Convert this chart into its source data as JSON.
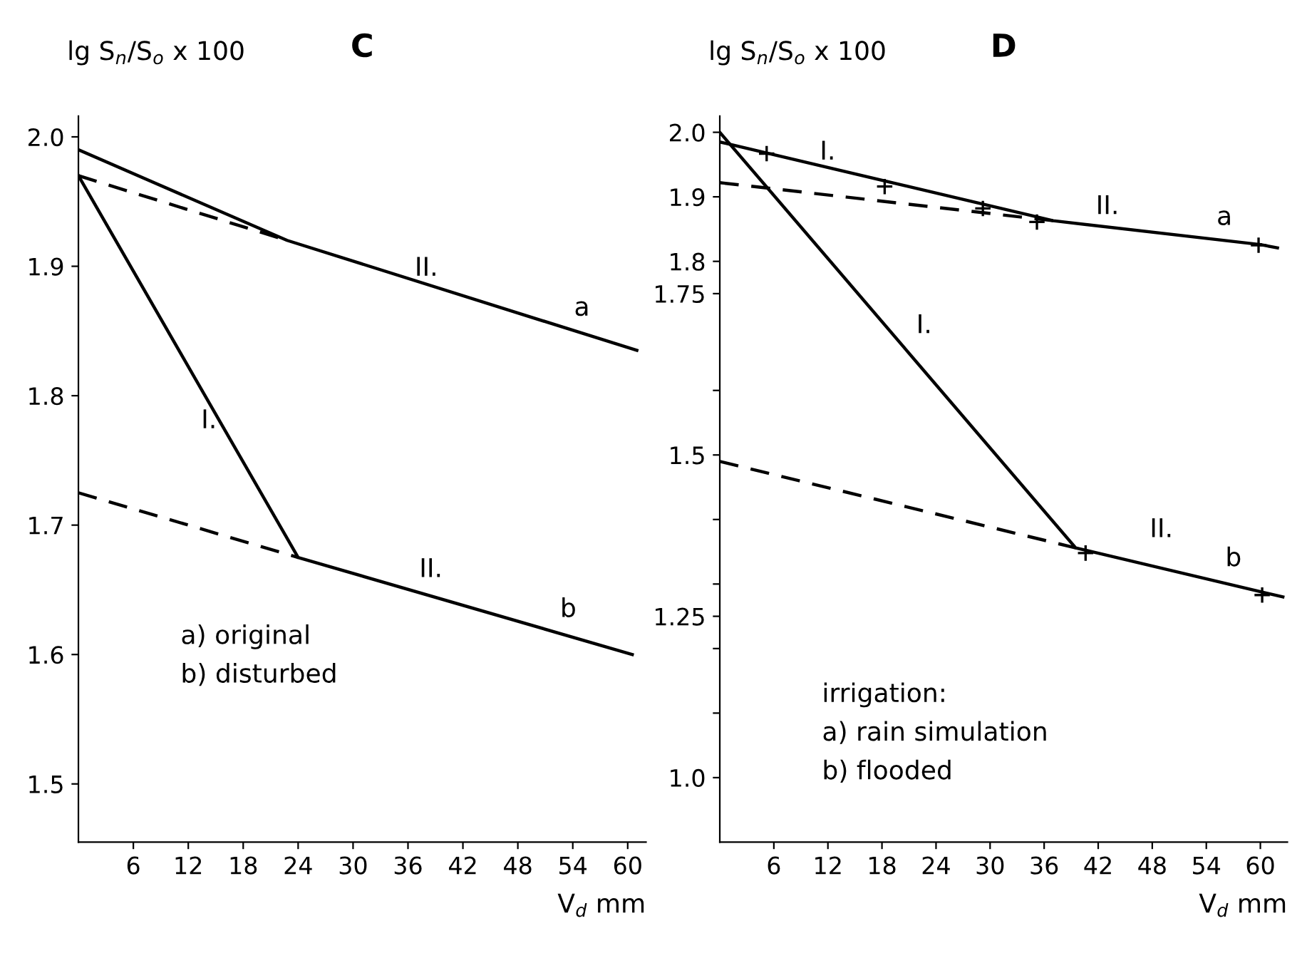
{
  "chart_data": [
    {
      "type": "line",
      "title": "C",
      "ylabel": "lg S$_{n}$/S$_{o}$ x 100",
      "xlabel": "V$_{d}$ mm",
      "xlim": [
        0,
        62
      ],
      "xticks": [
        6,
        12,
        18,
        24,
        30,
        36,
        42,
        48,
        54,
        60
      ],
      "ylim": [
        1.455,
        2.016
      ],
      "yticks": [
        1.5,
        1.6,
        1.7,
        1.8,
        1.9,
        {
          "value": 2,
          "label": "2.0"
        }
      ],
      "grid": false,
      "legend": false,
      "series": [
        {
          "color": "#000000",
          "line_style": "solid",
          "x": [
            0,
            22.8,
            61
          ],
          "values": [
            1.99,
            1.92,
            1.835
          ]
        },
        {
          "color": "#000000",
          "line_style": "dashed",
          "x": [
            0,
            22.8
          ],
          "values": [
            1.97,
            1.92
          ]
        },
        {
          "color": "#000000",
          "line_style": "solid",
          "x": [
            0,
            24,
            60.5
          ],
          "values": [
            1.97,
            1.675,
            1.6
          ]
        },
        {
          "color": "#000000",
          "line_style": "dashed",
          "x": [
            0,
            24
          ],
          "values": [
            1.725,
            1.675
          ]
        }
      ],
      "annotations": [
        "I.",
        "II.",
        "a",
        "II.",
        "b",
        "a) original\nb) disturbed"
      ]
    },
    {
      "type": "line",
      "title": "D",
      "ylabel": "lg S$_{n}$/S$_{o}$ x 100",
      "xlabel": "V$_{d}$ mm",
      "xlim": [
        0,
        63
      ],
      "xticks": [
        6,
        12,
        18,
        24,
        30,
        36,
        42,
        48,
        54,
        60
      ],
      "ylim": [
        0.9,
        2.025
      ],
      "yticks": [
        {
          "value": 1,
          "label": "1.0"
        },
        {
          "value": 1.1,
          "label": null
        },
        {
          "value": 1.2,
          "label": null
        },
        1.25,
        {
          "value": 1.3,
          "label": null
        },
        {
          "value": 1.4,
          "label": null
        },
        1.5,
        {
          "value": 1.6,
          "label": null
        },
        1.75,
        1.8,
        1.9,
        {
          "value": 2,
          "label": "2.0"
        }
      ],
      "grid": false,
      "legend": false,
      "series": [
        {
          "color": "#000000",
          "line_style": "solid",
          "x": [
            0,
            37,
            60
          ],
          "values": [
            1.985,
            1.863,
            1.826
          ]
        },
        {
          "color": "#000000",
          "line_style": "dashed",
          "x": [
            0,
            37
          ],
          "values": [
            1.922,
            1.863
          ]
        },
        {
          "color": "#000000",
          "line_style": "dashed",
          "x": [
            60,
            63
          ],
          "values": [
            1.826,
            1.818
          ]
        },
        {
          "color": "#000000",
          "line_style": "solid",
          "x": [
            0,
            39.5,
            62.5
          ],
          "values": [
            2.0,
            1.356,
            1.28
          ]
        },
        {
          "color": "#000000",
          "line_style": "dashed",
          "x": [
            0,
            39.5
          ],
          "values": [
            1.49,
            1.356
          ]
        },
        {
          "type": "scatter",
          "color": "#000000",
          "marker": "cross",
          "x": [
            5.2,
            18.3,
            29.2,
            35.2,
            59.8,
            40.6,
            60.2
          ],
          "values": [
            1.967,
            1.916,
            1.882,
            1.861,
            1.825,
            1.348,
            1.283
          ]
        }
      ],
      "annotations": [
        "I.",
        "II.",
        "a",
        "I.",
        "II.",
        "b",
        "irrigation:\na) rain simulation\nb) flooded"
      ]
    }
  ]
}
